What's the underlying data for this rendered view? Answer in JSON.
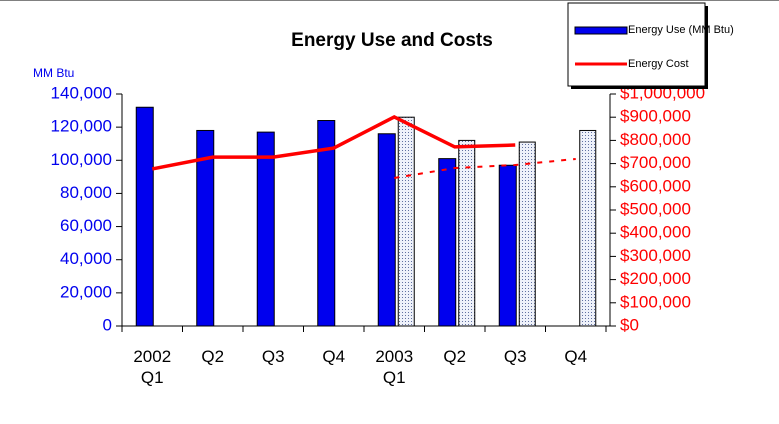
{
  "chart_data": {
    "type": "bar",
    "title": "Energy Use and Costs",
    "y_label": "MM Btu",
    "categories": [
      "2002\nQ1",
      "Q2",
      "Q3",
      "Q4",
      "2003\nQ1",
      "Q2",
      "Q3",
      "Q4"
    ],
    "series": [
      {
        "name": "Energy Use (MM Btu)",
        "type": "bar",
        "color": "#0000ee",
        "values": [
          132000,
          118000,
          117000,
          124000,
          116000,
          101000,
          97000,
          null
        ]
      },
      {
        "type": "bar",
        "pattern": "dotted",
        "color": "#dde4f4",
        "values": [
          null,
          null,
          null,
          null,
          126000,
          112000,
          111000,
          118000
        ]
      },
      {
        "name": "Energy Cost",
        "type": "line",
        "axis": "y2",
        "color": "#ff0000",
        "values": [
          677000,
          728000,
          728000,
          767000,
          901000,
          772000,
          780000,
          null
        ]
      },
      {
        "type": "line",
        "axis": "y2",
        "dashed": true,
        "color": "#ff0000",
        "values": [
          null,
          null,
          null,
          null,
          638000,
          681000,
          694000,
          720000
        ]
      }
    ],
    "ylim": [
      0,
      140000
    ],
    "yticks": [
      0,
      {
        "value": 20000,
        "label": "20,000"
      },
      {
        "value": 40000,
        "label": "40,000"
      },
      {
        "value": 60000,
        "label": "60,000"
      },
      {
        "value": 80000,
        "label": "80,000"
      },
      {
        "value": 100000,
        "label": "100,000"
      },
      {
        "value": 120000,
        "label": "120,000"
      },
      {
        "value": 140000,
        "label": "140,000"
      }
    ],
    "y2lim": [
      0,
      1000000
    ],
    "y2ticks": [
      {
        "value": 0,
        "label": "$0"
      },
      {
        "value": 100000,
        "label": "$100,000"
      },
      {
        "value": 200000,
        "label": "$200,000"
      },
      {
        "value": 300000,
        "label": "$300,000"
      },
      {
        "value": 400000,
        "label": "$400,000"
      },
      {
        "value": 500000,
        "label": "$500,000"
      },
      {
        "value": 600000,
        "label": "$600,000"
      },
      {
        "value": 700000,
        "label": "$700,000"
      },
      {
        "value": 800000,
        "label": "$800,000"
      },
      {
        "value": 900000,
        "label": "$900,000"
      },
      {
        "value": 1000000,
        "label": "$1,000,000"
      }
    ],
    "y_color": "#0000ee",
    "y2_color": "#ff0000",
    "legend": "top-right",
    "grid": false
  }
}
